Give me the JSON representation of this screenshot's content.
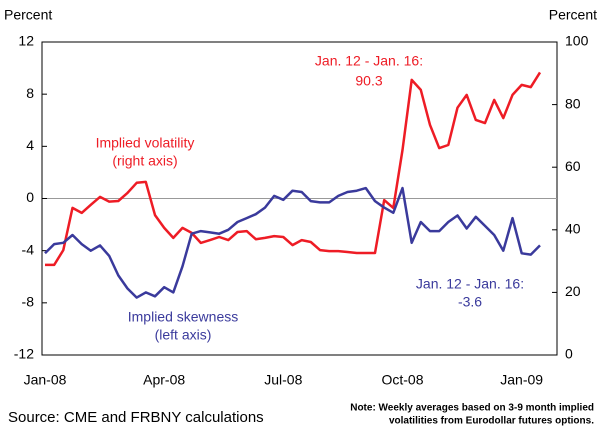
{
  "chart_data": {
    "type": "line",
    "y_axis_label": "Percent",
    "y2_axis_label": "Percent",
    "categories": [
      "Jan-08",
      null,
      null,
      null,
      null,
      null,
      null,
      null,
      null,
      null,
      null,
      null,
      null,
      "Apr-08",
      null,
      null,
      null,
      null,
      null,
      null,
      null,
      null,
      null,
      null,
      null,
      null,
      "Jul-08",
      null,
      null,
      null,
      null,
      null,
      null,
      null,
      null,
      null,
      null,
      null,
      null,
      "Oct-08",
      null,
      null,
      null,
      null,
      null,
      null,
      null,
      null,
      null,
      null,
      null,
      null,
      "Jan-09",
      null,
      null
    ],
    "ylim": [
      -12,
      12
    ],
    "yticks": [
      -12,
      -8,
      -4,
      0,
      4,
      8,
      12
    ],
    "y2lim": [
      0,
      100
    ],
    "y2ticks": [
      0,
      20,
      40,
      60,
      80,
      100
    ],
    "reference_line": 0,
    "series": [
      {
        "name": "Implied volatility",
        "note": "(right axis)",
        "color": "#ee1c25",
        "axis": "y2",
        "values": [
          28.8,
          28.8,
          33.5,
          47,
          45.4,
          48,
          50.5,
          49,
          49.2,
          51.8,
          55,
          55.3,
          44.7,
          40.6,
          37.4,
          40.6,
          39,
          35.8,
          36.7,
          37.7,
          36.7,
          39.3,
          39.6,
          37,
          37.4,
          38,
          37.7,
          35.1,
          36.7,
          36.1,
          33.5,
          33.2,
          33.2,
          32.9,
          32.6,
          32.6,
          32.6,
          49.5,
          47,
          65.5,
          87.9,
          84.7,
          73.5,
          66.1,
          67.1,
          79,
          83.1,
          75.1,
          74.1,
          81.5,
          75.7,
          83.1,
          86.3,
          85.6,
          90.3
        ]
      },
      {
        "name": "Implied skewness",
        "note": "(left axis)",
        "color": "#3a3a9c",
        "values": [
          -4.2,
          -3.5,
          -3.4,
          -2.8,
          -3.5,
          -4,
          -3.6,
          -4.4,
          -5.9,
          -6.9,
          -7.6,
          -7.2,
          -7.5,
          -6.8,
          -7.2,
          -5.2,
          -2.7,
          -2.5,
          -2.6,
          -2.7,
          -2.4,
          -1.8,
          -1.5,
          -1.2,
          -0.7,
          0.2,
          -0.1,
          0.6,
          0.5,
          -0.2,
          -0.3,
          -0.3,
          0.2,
          0.5,
          0.6,
          0.8,
          -0.2,
          -0.7,
          -1.1,
          0.8,
          -3.4,
          -1.8,
          -2.5,
          -2.5,
          -1.8,
          -1.3,
          -2.3,
          -1.4,
          -2.1,
          -2.8,
          -4,
          -1.5,
          -4.2,
          -4.3,
          -3.6
        ]
      }
    ],
    "annotations": [
      {
        "lines": [
          "Jan. 12 - Jan. 16:",
          "90.3"
        ],
        "color": "#ee1c25"
      },
      {
        "lines": [
          "Jan. 12 - Jan. 16:",
          "-3.6"
        ],
        "color": "#3a3a9c"
      }
    ],
    "source": "Source: CME and FRBNY calculations",
    "note": [
      "Note: Weekly averages based on 3-9 month implied",
      "volatilities from Eurodollar futures options."
    ]
  }
}
